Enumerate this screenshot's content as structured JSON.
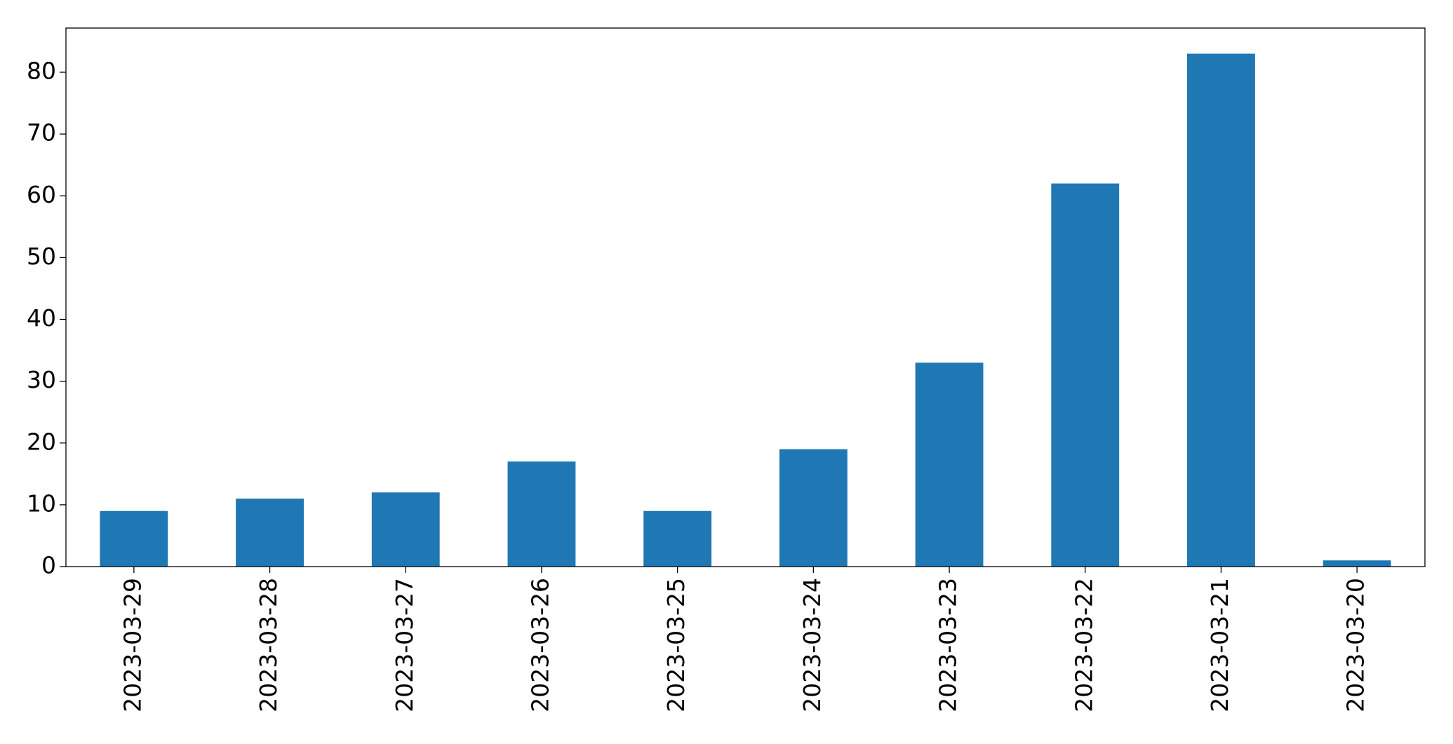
{
  "chart_data": {
    "type": "bar",
    "categories": [
      "2023-03-29",
      "2023-03-28",
      "2023-03-27",
      "2023-03-26",
      "2023-03-25",
      "2023-03-24",
      "2023-03-23",
      "2023-03-22",
      "2023-03-21",
      "2023-03-20"
    ],
    "values": [
      9,
      11,
      12,
      17,
      9,
      19,
      33,
      62,
      83,
      1
    ],
    "color": "#1f77b4",
    "ylim": [
      0,
      87.15
    ],
    "yticks": [
      0,
      10,
      20,
      30,
      40,
      50,
      60,
      70,
      80
    ],
    "grid": false
  }
}
